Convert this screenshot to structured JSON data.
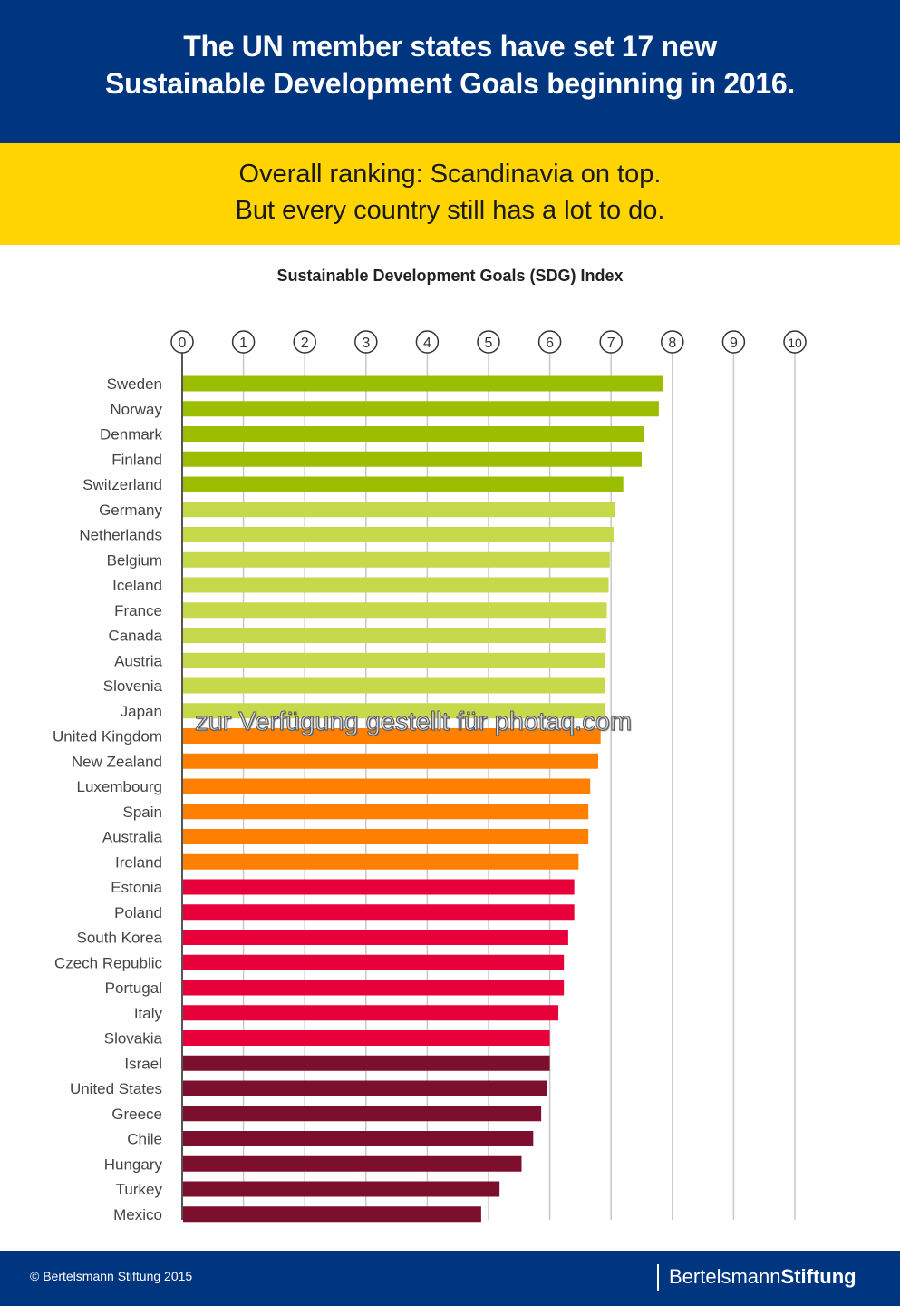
{
  "header": {
    "line1": "The UN member states have set 17 new",
    "line2": "Sustainable Development Goals beginning in 2016."
  },
  "subheader": {
    "line1": "Overall ranking: Scandinavia on top.",
    "line2": "But every country still has a lot to do."
  },
  "footer": {
    "copyright": "© Bertelsmann Stiftung 2015",
    "brand_light": "Bertelsmann",
    "brand_bold": "Stiftung"
  },
  "watermark": "zur Verfügung gestellt für photaq.com",
  "colors": {
    "navy": "#003580",
    "yellow": "#ffd400",
    "tier1": "#9bbf00",
    "tier2": "#c5d94a",
    "tier3": "#ff8000",
    "tier4": "#e8003a",
    "tier5": "#7d0f2e"
  },
  "chart_data": {
    "type": "bar",
    "orientation": "horizontal",
    "title": "Sustainable Development Goals (SDG) Index",
    "xlabel": "",
    "ylabel": "",
    "xlim": [
      0,
      10
    ],
    "ticks": [
      "0",
      "1",
      "2",
      "3",
      "4",
      "5",
      "6",
      "7",
      "8",
      "9",
      "10"
    ],
    "grid": true,
    "categories": [
      "Sweden",
      "Norway",
      "Denmark",
      "Finland",
      "Switzerland",
      "Germany",
      "Netherlands",
      "Belgium",
      "Iceland",
      "France",
      "Canada",
      "Austria",
      "Slovenia",
      "Japan",
      "United Kingdom",
      "New Zealand",
      "Luxembourg",
      "Spain",
      "Australia",
      "Ireland",
      "Estonia",
      "Poland",
      "South Korea",
      "Czech Republic",
      "Portugal",
      "Italy",
      "Slovakia",
      "Israel",
      "United States",
      "Greece",
      "Chile",
      "Hungary",
      "Turkey",
      "Mexico"
    ],
    "values": [
      7.85,
      7.78,
      7.53,
      7.5,
      7.2,
      7.07,
      7.04,
      6.98,
      6.96,
      6.93,
      6.92,
      6.9,
      6.9,
      6.9,
      6.83,
      6.79,
      6.66,
      6.63,
      6.63,
      6.47,
      6.4,
      6.4,
      6.3,
      6.23,
      6.23,
      6.14,
      6.0,
      6.0,
      5.95,
      5.86,
      5.73,
      5.54,
      5.18,
      4.88
    ],
    "tiers": [
      1,
      1,
      1,
      1,
      1,
      2,
      2,
      2,
      2,
      2,
      2,
      2,
      2,
      2,
      3,
      3,
      3,
      3,
      3,
      3,
      4,
      4,
      4,
      4,
      4,
      4,
      4,
      5,
      5,
      5,
      5,
      5,
      5,
      5
    ]
  }
}
